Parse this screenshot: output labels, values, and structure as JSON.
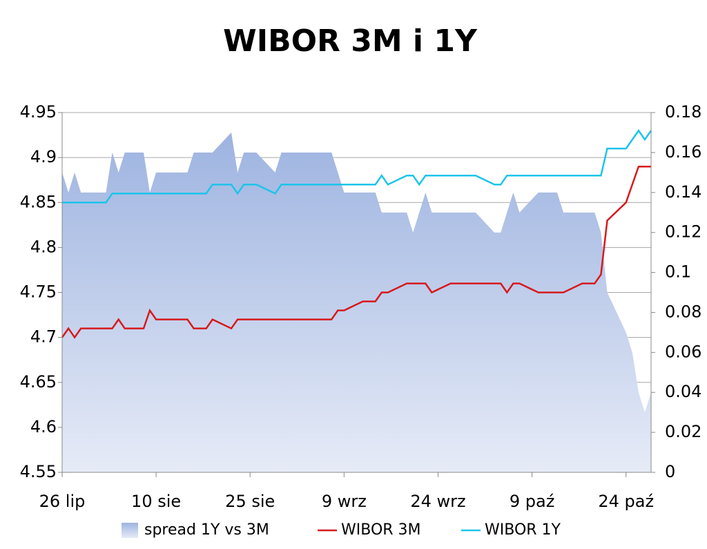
{
  "chart_data": {
    "type": "line",
    "title": "WIBOR 3M i 1Y",
    "x": [
      0,
      1,
      2,
      3,
      6,
      7,
      8,
      9,
      10,
      13,
      14,
      15,
      16,
      17,
      20,
      21,
      22,
      23,
      24,
      27,
      28,
      29,
      30,
      31,
      34,
      35,
      36,
      37,
      38,
      41,
      42,
      43,
      44,
      45,
      48,
      49,
      50,
      51,
      52,
      55,
      56,
      57,
      58,
      59,
      62,
      63,
      64,
      65,
      66,
      69,
      70,
      71,
      72,
      73,
      76,
      77,
      78,
      79,
      80,
      83,
      84,
      85,
      86,
      87,
      90,
      91,
      92,
      93,
      94
    ],
    "xlim": [
      0,
      94
    ],
    "xticks": [
      {
        "value": 0,
        "label": "26 lip"
      },
      {
        "value": 15,
        "label": "10 sie"
      },
      {
        "value": 30,
        "label": "25 sie"
      },
      {
        "value": 45,
        "label": "9 wrz"
      },
      {
        "value": 60,
        "label": "24 wrz"
      },
      {
        "value": 75,
        "label": "9 paź"
      },
      {
        "value": 90,
        "label": "24 paź"
      }
    ],
    "ylim": [
      4.55,
      4.95
    ],
    "yticks": [
      4.55,
      4.6,
      4.65,
      4.7,
      4.75,
      4.8,
      4.85,
      4.9,
      4.95
    ],
    "y2lim": [
      0,
      0.18
    ],
    "y2ticks": [
      0,
      0.02,
      0.04,
      0.06,
      0.08,
      0.1,
      0.12,
      0.14,
      0.16,
      0.18
    ],
    "grid": true,
    "legend": "bottom",
    "series": [
      {
        "name": "spread 1Y vs 3M",
        "type": "area",
        "axis": "y2",
        "color": "#9db3e0",
        "values": [
          0.15,
          0.14,
          0.15,
          0.14,
          0.14,
          0.14,
          0.16,
          0.15,
          0.16,
          0.16,
          0.14,
          0.15,
          0.15,
          0.15,
          0.15,
          0.16,
          0.16,
          0.16,
          0.16,
          0.17,
          0.15,
          0.16,
          0.16,
          0.16,
          0.15,
          0.16,
          0.16,
          0.16,
          0.16,
          0.16,
          0.16,
          0.16,
          0.15,
          0.14,
          0.14,
          0.14,
          0.14,
          0.13,
          0.13,
          0.13,
          0.12,
          0.13,
          0.14,
          0.13,
          0.13,
          0.13,
          0.13,
          0.13,
          0.13,
          0.12,
          0.12,
          0.13,
          0.14,
          0.13,
          0.14,
          0.14,
          0.14,
          0.14,
          0.13,
          0.13,
          0.13,
          0.13,
          0.12,
          0.09,
          0.07,
          0.06,
          0.04,
          0.03,
          0.04
        ]
      },
      {
        "name": "WIBOR 3M",
        "color": "#d7191c",
        "values": [
          4.7,
          4.71,
          4.7,
          4.71,
          4.71,
          4.71,
          4.71,
          4.72,
          4.71,
          4.71,
          4.73,
          4.72,
          4.72,
          4.72,
          4.72,
          4.71,
          4.71,
          4.71,
          4.72,
          4.71,
          4.72,
          4.72,
          4.72,
          4.72,
          4.72,
          4.72,
          4.72,
          4.72,
          4.72,
          4.72,
          4.72,
          4.72,
          4.73,
          4.73,
          4.74,
          4.74,
          4.74,
          4.75,
          4.75,
          4.76,
          4.76,
          4.76,
          4.76,
          4.75,
          4.76,
          4.76,
          4.76,
          4.76,
          4.76,
          4.76,
          4.76,
          4.75,
          4.76,
          4.76,
          4.75,
          4.75,
          4.75,
          4.75,
          4.75,
          4.76,
          4.76,
          4.76,
          4.77,
          4.83,
          4.85,
          4.87,
          4.89,
          4.89,
          4.89
        ]
      },
      {
        "name": "WIBOR 1Y",
        "color": "#1cc4ea",
        "values": [
          4.85,
          4.85,
          4.85,
          4.85,
          4.85,
          4.85,
          4.86,
          4.86,
          4.86,
          4.86,
          4.86,
          4.86,
          4.86,
          4.86,
          4.86,
          4.86,
          4.86,
          4.86,
          4.87,
          4.87,
          4.86,
          4.87,
          4.87,
          4.87,
          4.86,
          4.87,
          4.87,
          4.87,
          4.87,
          4.87,
          4.87,
          4.87,
          4.87,
          4.87,
          4.87,
          4.87,
          4.87,
          4.88,
          4.87,
          4.88,
          4.88,
          4.87,
          4.88,
          4.88,
          4.88,
          4.88,
          4.88,
          4.88,
          4.88,
          4.87,
          4.87,
          4.88,
          4.88,
          4.88,
          4.88,
          4.88,
          4.88,
          4.88,
          4.88,
          4.88,
          4.88,
          4.88,
          4.88,
          4.91,
          4.91,
          4.92,
          4.93,
          4.92,
          4.93
        ]
      }
    ]
  }
}
